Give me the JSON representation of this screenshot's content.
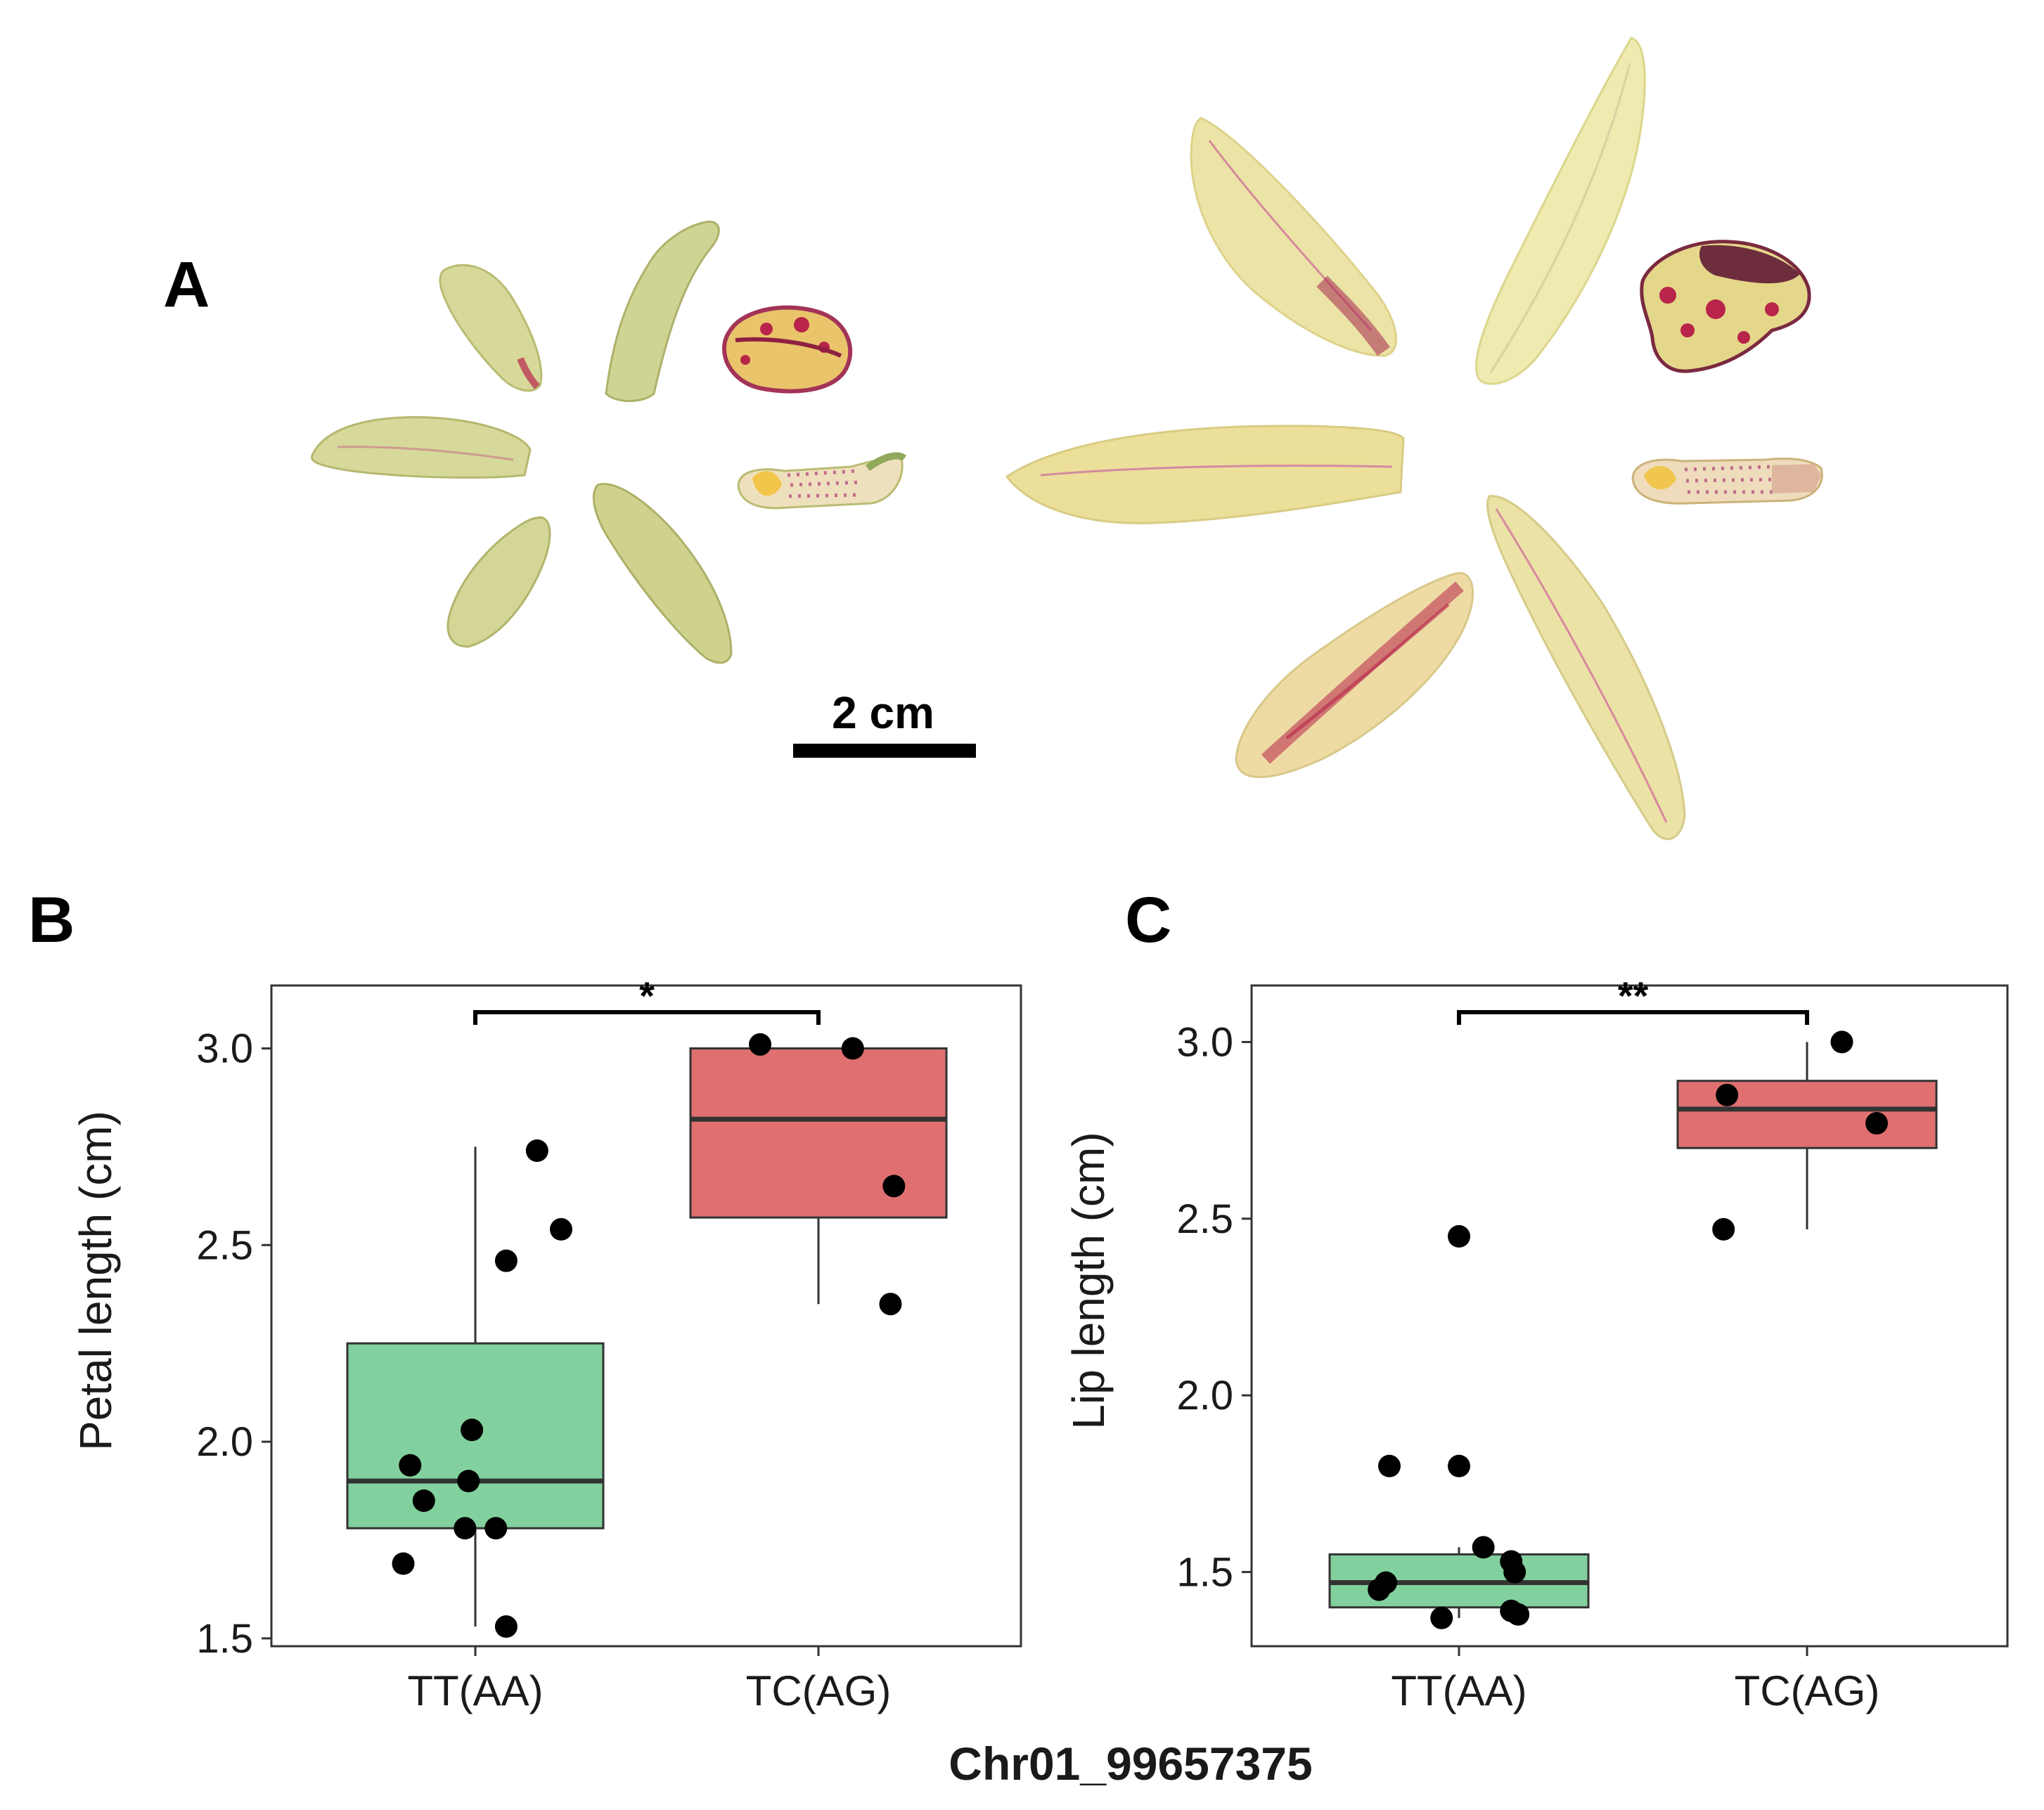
{
  "figure": {
    "panel_a_label": "A",
    "panel_b_label": "B",
    "panel_c_label": "C",
    "scale_bar_label": "2 cm",
    "shared_xlabel": "Chr01_99657375",
    "colors": {
      "tt_fill": "#82d09d",
      "tc_fill": "#e07070",
      "box_stroke": "#333333",
      "point": "#000000",
      "petal_yellow": "#e9e4a2",
      "petal_green": "#cfd492",
      "petal_red": "#b8244a"
    }
  },
  "chart_data": [
    {
      "panel": "B",
      "type": "box",
      "ylabel": "Petal length (cm)",
      "xlabel": "",
      "categories": [
        "TT(AA)",
        "TC(AG)"
      ],
      "ylim": [
        1.48,
        3.16
      ],
      "yticks": [
        1.5,
        2.0,
        2.5,
        3.0
      ],
      "ytick_labels": [
        "1.5",
        "2.0",
        "2.5",
        "3.0"
      ],
      "significance": "*",
      "boxes": [
        {
          "category": "TT(AA)",
          "min": 1.53,
          "q1": 1.78,
          "median": 1.9,
          "q3": 2.25,
          "max": 2.75
        },
        {
          "category": "TC(AG)",
          "min": 2.35,
          "q1": 2.57,
          "median": 2.82,
          "q3": 3.0,
          "max": 3.0
        }
      ],
      "points": [
        {
          "category": "TT(AA)",
          "jitter": 0.18,
          "y": 2.74
        },
        {
          "category": "TT(AA)",
          "jitter": 0.25,
          "y": 2.54
        },
        {
          "category": "TT(AA)",
          "jitter": 0.09,
          "y": 2.46
        },
        {
          "category": "TT(AA)",
          "jitter": -0.01,
          "y": 2.03
        },
        {
          "category": "TT(AA)",
          "jitter": -0.19,
          "y": 1.94
        },
        {
          "category": "TT(AA)",
          "jitter": -0.02,
          "y": 1.9
        },
        {
          "category": "TT(AA)",
          "jitter": -0.15,
          "y": 1.85
        },
        {
          "category": "TT(AA)",
          "jitter": -0.03,
          "y": 1.78
        },
        {
          "category": "TT(AA)",
          "jitter": 0.06,
          "y": 1.78
        },
        {
          "category": "TT(AA)",
          "jitter": -0.21,
          "y": 1.69
        },
        {
          "category": "TT(AA)",
          "jitter": 0.09,
          "y": 1.53
        },
        {
          "category": "TC(AG)",
          "jitter": -0.17,
          "y": 3.01
        },
        {
          "category": "TC(AG)",
          "jitter": 0.1,
          "y": 3.0
        },
        {
          "category": "TC(AG)",
          "jitter": 0.22,
          "y": 2.65
        },
        {
          "category": "TC(AG)",
          "jitter": 0.21,
          "y": 2.35
        }
      ]
    },
    {
      "panel": "C",
      "type": "box",
      "ylabel": "Lip length (cm)",
      "xlabel": "",
      "categories": [
        "TT(AA)",
        "TC(AG)"
      ],
      "ylim": [
        1.29,
        3.16
      ],
      "yticks": [
        1.5,
        2.0,
        2.5,
        3.0
      ],
      "ytick_labels": [
        "1.5",
        "2.0",
        "2.5",
        "3.0"
      ],
      "significance": "**",
      "boxes": [
        {
          "category": "TT(AA)",
          "min": 1.37,
          "q1": 1.4,
          "median": 1.47,
          "q3": 1.55,
          "max": 1.57
        },
        {
          "category": "TC(AG)",
          "min": 2.47,
          "q1": 2.7,
          "median": 2.81,
          "q3": 2.89,
          "max": 3.0
        }
      ],
      "points": [
        {
          "category": "TT(AA)",
          "jitter": -0.23,
          "y": 1.45
        },
        {
          "category": "TT(AA)",
          "jitter": -0.21,
          "y": 1.47
        },
        {
          "category": "TT(AA)",
          "jitter": -0.2,
          "y": 1.8
        },
        {
          "category": "TT(AA)",
          "jitter": 0.0,
          "y": 1.8
        },
        {
          "category": "TT(AA)",
          "jitter": 0.0,
          "y": 2.45
        },
        {
          "category": "TT(AA)",
          "jitter": -0.05,
          "y": 1.37
        },
        {
          "category": "TT(AA)",
          "jitter": 0.07,
          "y": 1.57
        },
        {
          "category": "TT(AA)",
          "jitter": 0.15,
          "y": 1.53
        },
        {
          "category": "TT(AA)",
          "jitter": 0.16,
          "y": 1.5
        },
        {
          "category": "TT(AA)",
          "jitter": 0.15,
          "y": 1.39
        },
        {
          "category": "TT(AA)",
          "jitter": 0.17,
          "y": 1.38
        },
        {
          "category": "TC(AG)",
          "jitter": -0.24,
          "y": 2.47
        },
        {
          "category": "TC(AG)",
          "jitter": -0.23,
          "y": 2.85
        },
        {
          "category": "TC(AG)",
          "jitter": 0.1,
          "y": 3.0
        },
        {
          "category": "TC(AG)",
          "jitter": 0.2,
          "y": 2.77
        }
      ]
    }
  ]
}
